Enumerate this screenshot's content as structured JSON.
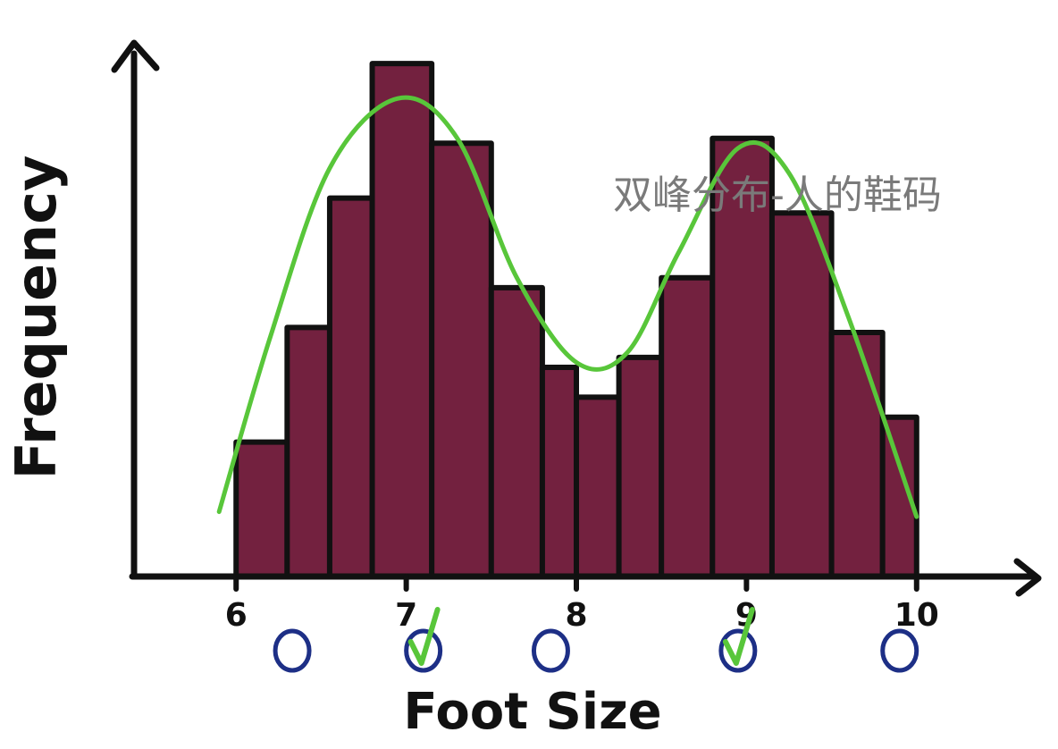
{
  "caption": "双峰分布-人的鞋码",
  "chart_data": {
    "type": "bar",
    "xlabel": "Foot Size",
    "ylabel": "Frequency",
    "x_ticks": [
      "6",
      "7",
      "8",
      "9",
      "10"
    ],
    "xlim": [
      5.4,
      10.6
    ],
    "ylim": [
      0,
      10.5
    ],
    "bins": [
      {
        "x0": 6.0,
        "x1": 6.3,
        "value": 2.7
      },
      {
        "x0": 6.3,
        "x1": 6.55,
        "value": 5.0
      },
      {
        "x0": 6.55,
        "x1": 6.8,
        "value": 7.6
      },
      {
        "x0": 6.8,
        "x1": 7.15,
        "value": 10.3
      },
      {
        "x0": 7.15,
        "x1": 7.5,
        "value": 8.7
      },
      {
        "x0": 7.5,
        "x1": 7.8,
        "value": 5.8
      },
      {
        "x0": 7.8,
        "x1": 8.0,
        "value": 4.2
      },
      {
        "x0": 8.0,
        "x1": 8.25,
        "value": 3.6
      },
      {
        "x0": 8.25,
        "x1": 8.5,
        "value": 4.4
      },
      {
        "x0": 8.5,
        "x1": 8.8,
        "value": 6.0
      },
      {
        "x0": 8.8,
        "x1": 9.15,
        "value": 8.8
      },
      {
        "x0": 9.15,
        "x1": 9.5,
        "value": 7.3
      },
      {
        "x0": 9.5,
        "x1": 9.8,
        "value": 4.9
      },
      {
        "x0": 9.8,
        "x1": 10.0,
        "value": 3.2
      }
    ],
    "curve": {
      "points": [
        [
          5.9,
          1.3
        ],
        [
          6.2,
          4.8
        ],
        [
          6.55,
          8.2
        ],
        [
          6.95,
          9.6
        ],
        [
          7.3,
          8.8
        ],
        [
          7.65,
          6.0
        ],
        [
          8.0,
          4.3
        ],
        [
          8.3,
          4.5
        ],
        [
          8.6,
          6.5
        ],
        [
          8.95,
          8.6
        ],
        [
          9.25,
          8.1
        ],
        [
          9.6,
          5.2
        ],
        [
          10.0,
          1.2
        ]
      ],
      "color": "#58c63a"
    },
    "markers": [
      {
        "x": 6.33,
        "symbol": "circle",
        "checked": false
      },
      {
        "x": 7.1,
        "symbol": "circle",
        "checked": true
      },
      {
        "x": 7.85,
        "symbol": "circle",
        "checked": false
      },
      {
        "x": 8.95,
        "symbol": "circle",
        "checked": true
      },
      {
        "x": 9.9,
        "symbol": "circle",
        "checked": false
      }
    ],
    "bar_color": "#73213f",
    "marker_color": "#1d2f86",
    "check_color": "#58c63a",
    "grid": false
  }
}
